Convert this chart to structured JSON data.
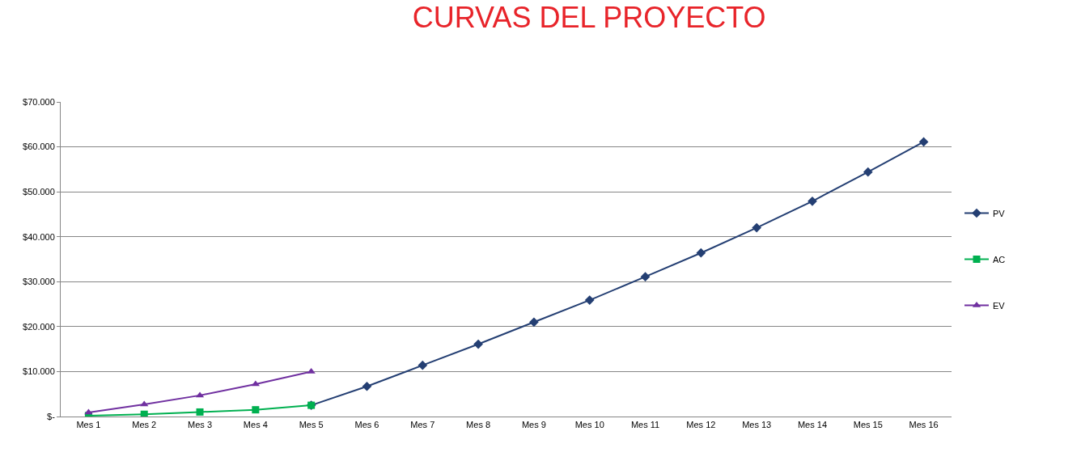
{
  "chart_data": {
    "type": "line",
    "title": "CURVAS DEL PROYECTO",
    "categories": [
      "Mes 1",
      "Mes 2",
      "Mes 3",
      "Mes 4",
      "Mes 5",
      "Mes 6",
      "Mes 7",
      "Mes 8",
      "Mes 9",
      "Mes 10",
      "Mes 11",
      "Mes 12",
      "Mes 13",
      "Mes 14",
      "Mes 15",
      "Mes 16"
    ],
    "series": [
      {
        "name": "PV",
        "color": "#243f73",
        "marker": "diamond",
        "values": [
          null,
          null,
          null,
          null,
          2500,
          6700,
          11400,
          16100,
          21000,
          25900,
          31100,
          36400,
          42000,
          47900,
          54400,
          61100
        ]
      },
      {
        "name": "AC",
        "color": "#00b050",
        "marker": "square",
        "values": [
          200,
          500,
          1000,
          1500,
          2500,
          null,
          null,
          null,
          null,
          null,
          null,
          null,
          null,
          null,
          null,
          null
        ]
      },
      {
        "name": "EV",
        "color": "#7030a0",
        "marker": "triangle",
        "values": [
          900,
          2700,
          4700,
          7200,
          10000,
          null,
          null,
          null,
          null,
          null,
          null,
          null,
          null,
          null,
          null,
          null
        ]
      }
    ],
    "ylim": [
      0,
      70000
    ],
    "yticks": [
      {
        "value": 0,
        "label": "$-"
      },
      {
        "value": 10000,
        "label": "$10.000"
      },
      {
        "value": 20000,
        "label": "$20.000"
      },
      {
        "value": 30000,
        "label": "$30.000"
      },
      {
        "value": 40000,
        "label": "$40.000"
      },
      {
        "value": 50000,
        "label": "$50.000"
      },
      {
        "value": 60000,
        "label": "$60.000"
      },
      {
        "value": 70000,
        "label": "$70.000"
      }
    ],
    "grid": "y",
    "legend": "right"
  }
}
